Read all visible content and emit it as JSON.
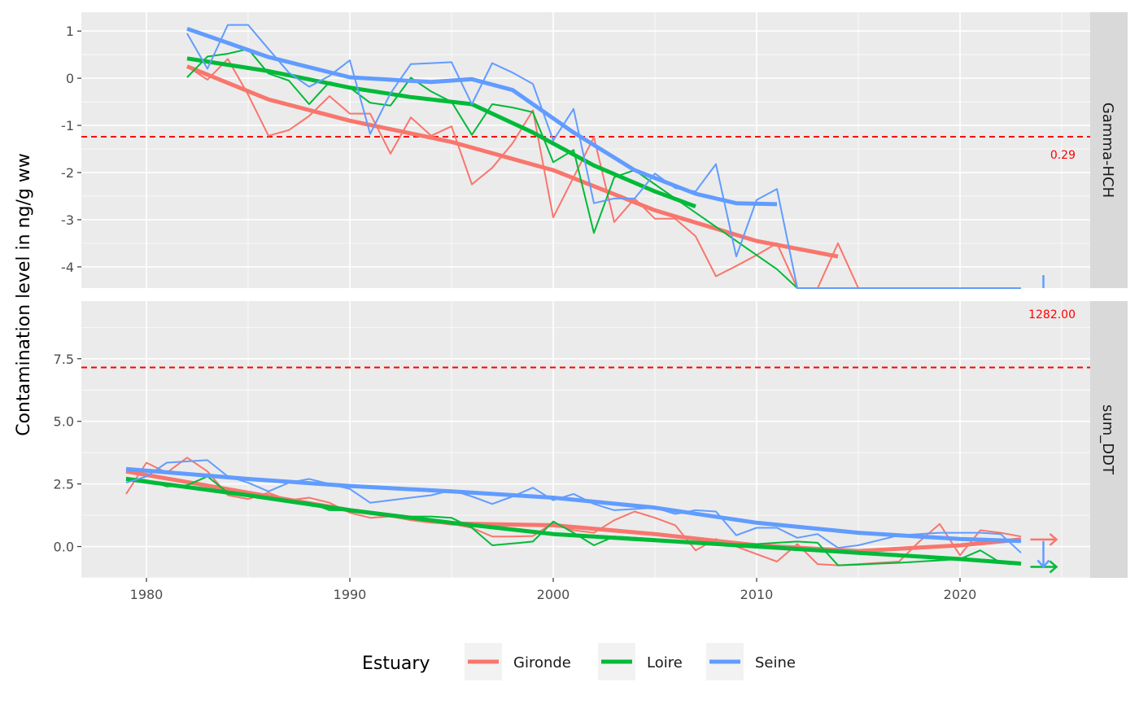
{
  "chart_data": {
    "type": "line",
    "ylabel": "Contamination level in ng/g ww",
    "xlabel": "",
    "xlim": [
      1976.8,
      2026.4
    ],
    "x_ticks": [
      1980,
      1990,
      2000,
      2010,
      2020
    ],
    "grid": true,
    "legend": {
      "title": "Estuary",
      "position": "bottom",
      "entries": [
        {
          "name": "Gironde",
          "color": "#F8766D"
        },
        {
          "name": "Loire",
          "color": "#00BA38"
        },
        {
          "name": "Seine",
          "color": "#619CFF"
        }
      ]
    },
    "panels": [
      {
        "strip": "Gamma-HCH",
        "ylim": [
          -4.45,
          1.4
        ],
        "y_ticks": [
          1,
          0,
          -1,
          -2,
          -3,
          -4
        ],
        "y_tick_labels": [
          "1",
          "0",
          "-1",
          "-2",
          "-3",
          "-4"
        ],
        "reference_line": {
          "y": -1.24,
          "label": "0.29",
          "color": "#FF0000"
        },
        "series": [
          {
            "name": "Gironde",
            "color": "#F8766D",
            "x": [
              1982,
              1983,
              1984,
              1985,
              1986,
              1987,
              1988,
              1989,
              1990,
              1991,
              1992,
              1993,
              1994,
              1995,
              1996,
              1997,
              1998,
              1999,
              2000,
              2001,
              2002,
              2003,
              2004,
              2005,
              2006,
              2007,
              2008,
              2009,
              2010,
              2011,
              2012,
              2013,
              2014,
              2015,
              2016,
              2017,
              2018,
              2019,
              2020,
              2021,
              2022,
              2023
            ],
            "y": [
              0.25,
              -0.03,
              0.41,
              -0.35,
              -1.22,
              -1.1,
              -0.8,
              -0.38,
              -0.75,
              -0.75,
              -1.6,
              -0.83,
              -1.22,
              -1.02,
              -2.25,
              -1.9,
              -1.38,
              -0.68,
              -2.95,
              -2.1,
              -1.25,
              -3.05,
              -2.55,
              -2.98,
              -2.98,
              -3.35,
              -4.2,
              -3.98,
              -3.75,
              -3.5,
              -4.45,
              -4.45,
              -3.5,
              -4.45,
              -4.45,
              -4.45,
              -4.45,
              -4.45,
              -4.45,
              -4.45,
              -4.45,
              -4.45
            ],
            "trend_x": [
              1982,
              1986,
              1990,
              1995,
              2000,
              2005,
              2010,
              2014
            ],
            "trend_y": [
              0.25,
              -0.45,
              -0.9,
              -1.35,
              -1.95,
              -2.8,
              -3.45,
              -3.78
            ]
          },
          {
            "name": "Loire",
            "color": "#00BA38",
            "x": [
              1982,
              1983,
              1984,
              1985,
              1986,
              1987,
              1988,
              1989,
              1990,
              1991,
              1992,
              1993,
              1994,
              1995,
              1996,
              1997,
              1998,
              1999,
              2000,
              2001,
              2002,
              2003,
              2004,
              2005,
              2006,
              2007,
              2008,
              2009,
              2010,
              2011,
              2012
            ],
            "y": [
              0.02,
              0.46,
              0.52,
              0.62,
              0.1,
              -0.05,
              -0.55,
              -0.08,
              -0.2,
              -0.52,
              -0.58,
              0.01,
              -0.28,
              -0.5,
              -1.2,
              -0.55,
              -0.62,
              -0.72,
              -1.78,
              -1.52,
              -3.28,
              -2.1,
              -1.95,
              -2.25,
              -2.55,
              -2.85,
              -3.15,
              -3.45,
              -3.75,
              -4.05,
              -4.45
            ],
            "trend_x": [
              1982,
              1986,
              1990,
              1993,
              1996,
              1999,
              2002,
              2005,
              2007
            ],
            "trend_y": [
              0.42,
              0.15,
              -0.2,
              -0.4,
              -0.55,
              -1.15,
              -1.85,
              -2.4,
              -2.72
            ]
          },
          {
            "name": "Seine",
            "color": "#619CFF",
            "x": [
              1982,
              1983,
              1984,
              1985,
              1986,
              1987,
              1988,
              1989,
              1990,
              1991,
              1992,
              1993,
              1994,
              1995,
              1996,
              1997,
              1998,
              1999,
              2000,
              2001,
              2002,
              2003,
              2004,
              2005,
              2006,
              2007,
              2008,
              2009,
              2010,
              2011,
              2012,
              2013,
              2014,
              2015,
              2016,
              2017,
              2018,
              2019,
              2020,
              2021,
              2022,
              2023
            ],
            "y": [
              0.95,
              0.2,
              1.13,
              1.13,
              0.62,
              0.12,
              -0.18,
              0.05,
              0.38,
              -1.18,
              -0.32,
              0.3,
              0.32,
              0.34,
              -0.55,
              0.32,
              0.12,
              -0.12,
              -1.32,
              -0.65,
              -2.65,
              -2.55,
              -2.55,
              -2.02,
              -2.33,
              -2.4,
              -1.82,
              -3.78,
              -2.58,
              -2.35,
              -4.45,
              -4.45,
              -4.45,
              -4.45,
              -4.45,
              -4.45,
              -4.45,
              -4.45,
              -4.45,
              -4.45,
              -4.45,
              -4.45
            ],
            "trend_x": [
              1982,
              1986,
              1990,
              1994,
              1996,
              1998,
              2001,
              2004,
              2007,
              2009,
              2011
            ],
            "trend_y": [
              1.05,
              0.45,
              0.02,
              -0.08,
              -0.02,
              -0.25,
              -1.15,
              -1.95,
              -2.45,
              -2.65,
              -2.67
            ]
          }
        ]
      },
      {
        "strip": "sum_DDT",
        "ylim": [
          -1.25,
          9.8
        ],
        "y_ticks": [
          7.5,
          5.0,
          2.5,
          0.0
        ],
        "y_tick_labels": [
          "7.5",
          "5.0",
          "2.5",
          "0.0"
        ],
        "reference_line": {
          "y": 7.15,
          "label": "1282.00",
          "color": "#FF0000"
        },
        "series": [
          {
            "name": "Gironde",
            "color": "#F8766D",
            "x": [
              1979,
              1980,
              1981,
              1982,
              1983,
              1984,
              1985,
              1986,
              1987,
              1988,
              1989,
              1990,
              1991,
              1992,
              1993,
              1994,
              1995,
              1996,
              1997,
              1998,
              1999,
              2000,
              2001,
              2002,
              2003,
              2004,
              2005,
              2006,
              2007,
              2008,
              2009,
              2010,
              2011,
              2012,
              2013,
              2014,
              2015,
              2016,
              2017,
              2018,
              2019,
              2020,
              2021,
              2022,
              2023
            ],
            "y": [
              2.1,
              3.35,
              2.95,
              3.55,
              3.0,
              2.05,
              1.9,
              2.15,
              1.85,
              1.95,
              1.75,
              1.35,
              1.15,
              1.2,
              1.05,
              0.95,
              0.9,
              0.75,
              0.4,
              0.4,
              0.42,
              0.95,
              0.65,
              0.55,
              1.05,
              1.4,
              1.15,
              0.85,
              -0.15,
              0.3,
              0.0,
              -0.3,
              -0.6,
              0.1,
              -0.7,
              -0.75,
              -0.7,
              -0.65,
              -0.6,
              0.2,
              0.9,
              -0.35,
              0.65,
              0.55,
              0.4
            ],
            "trend_x": [
              1979,
              1985,
              1990,
              1995,
              2000,
              2005,
              2010,
              2015,
              2020,
              2023
            ],
            "trend_y": [
              3.0,
              2.15,
              1.45,
              0.92,
              0.85,
              0.5,
              0.05,
              -0.18,
              0.05,
              0.28
            ]
          },
          {
            "name": "Loire",
            "color": "#00BA38",
            "x": [
              1979,
              1980,
              1981,
              1982,
              1983,
              1984,
              1985,
              1986,
              1987,
              1988,
              1989,
              1990,
              1991,
              1992,
              1993,
              1994,
              1995,
              1996,
              1997,
              1998,
              1999,
              2000,
              2001,
              2002,
              2003,
              2004,
              2005,
              2006,
              2007,
              2008,
              2009,
              2010,
              2011,
              2012,
              2013,
              2014,
              2015,
              2016,
              2017,
              2018,
              2019,
              2020,
              2021,
              2022,
              2023
            ],
            "y": [
              2.75,
              2.65,
              2.4,
              2.45,
              2.8,
              2.15,
              2.05,
              1.95,
              1.85,
              1.75,
              1.45,
              1.45,
              1.3,
              1.25,
              1.2,
              1.2,
              1.15,
              0.75,
              0.05,
              0.12,
              0.2,
              1.0,
              0.55,
              0.05,
              0.4,
              0.35,
              0.3,
              0.2,
              0.15,
              0.1,
              0.1,
              0.1,
              0.15,
              0.2,
              0.15,
              -0.75,
              -0.72,
              -0.68,
              -0.65,
              -0.6,
              -0.55,
              -0.5,
              -0.15,
              -0.65,
              -0.7
            ],
            "trend_x": [
              1979,
              1985,
              1990,
              1995,
              2000,
              2005,
              2010,
              2015,
              2020,
              2023
            ],
            "trend_y": [
              2.7,
              2.05,
              1.45,
              0.95,
              0.5,
              0.25,
              0.0,
              -0.25,
              -0.5,
              -0.68
            ]
          },
          {
            "name": "Seine",
            "color": "#619CFF",
            "x": [
              1979,
              1980,
              1981,
              1982,
              1983,
              1984,
              1985,
              1986,
              1987,
              1988,
              1989,
              1990,
              1991,
              1992,
              1993,
              1994,
              1995,
              1996,
              1997,
              1998,
              1999,
              2000,
              2001,
              2002,
              2003,
              2004,
              2005,
              2006,
              2007,
              2008,
              2009,
              2010,
              2011,
              2012,
              2013,
              2014,
              2015,
              2016,
              2017,
              2018,
              2019,
              2020,
              2021,
              2022,
              2023
            ],
            "y": [
              2.55,
              2.8,
              3.35,
              3.4,
              3.45,
              2.8,
              2.55,
              2.2,
              2.55,
              2.7,
              2.5,
              2.3,
              1.75,
              1.85,
              1.95,
              2.05,
              2.25,
              2.0,
              1.7,
              2.0,
              2.35,
              1.85,
              2.1,
              1.7,
              1.45,
              1.5,
              1.55,
              1.3,
              1.45,
              1.4,
              0.45,
              0.75,
              0.75,
              0.35,
              0.5,
              -0.05,
              0.05,
              0.25,
              0.45,
              0.5,
              0.55,
              0.55,
              0.55,
              0.5,
              -0.25
            ],
            "trend_x": [
              1979,
              1985,
              1990,
              1995,
              2000,
              2005,
              2010,
              2015,
              2020,
              2023
            ],
            "trend_y": [
              3.1,
              2.7,
              2.42,
              2.2,
              1.95,
              1.55,
              0.95,
              0.55,
              0.3,
              0.22
            ]
          }
        ]
      }
    ]
  }
}
